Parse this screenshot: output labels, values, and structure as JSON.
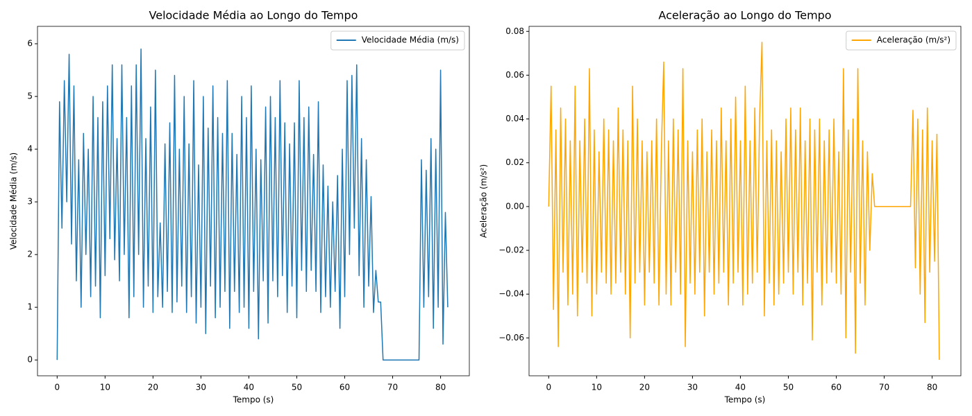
{
  "chart_data": [
    {
      "type": "line",
      "title": "Velocidade Média ao Longo do Tempo",
      "xlabel": "Tempo (s)",
      "ylabel": "Velocidade Média (m/s)",
      "x": [
        0,
        0.5,
        1,
        1.5,
        2,
        2.5,
        3,
        3.5,
        4,
        4.5,
        5,
        5.5,
        6,
        6.5,
        7,
        7.5,
        8,
        8.5,
        9,
        9.5,
        10,
        10.5,
        11,
        11.5,
        12,
        12.5,
        13,
        13.5,
        14,
        14.5,
        15,
        15.5,
        16,
        16.5,
        17,
        17.5,
        18,
        18.5,
        19,
        19.5,
        20,
        20.5,
        21,
        21.5,
        22,
        22.5,
        23,
        23.5,
        24,
        24.5,
        25,
        25.5,
        26,
        26.5,
        27,
        27.5,
        28,
        28.5,
        29,
        29.5,
        30,
        30.5,
        31,
        31.5,
        32,
        32.5,
        33,
        33.5,
        34,
        34.5,
        35,
        35.5,
        36,
        36.5,
        37,
        37.5,
        38,
        38.5,
        39,
        39.5,
        40,
        40.5,
        41,
        41.5,
        42,
        42.5,
        43,
        43.5,
        44,
        44.5,
        45,
        45.5,
        46,
        46.5,
        47,
        47.5,
        48,
        48.5,
        49,
        49.5,
        50,
        50.5,
        51,
        51.5,
        52,
        52.5,
        53,
        53.5,
        54,
        54.5,
        55,
        55.5,
        56,
        56.5,
        57,
        57.5,
        58,
        58.5,
        59,
        59.5,
        60,
        60.5,
        61,
        61.5,
        62,
        62.5,
        63,
        63.5,
        64,
        64.5,
        65,
        65.5,
        66,
        66.5,
        67,
        67.5,
        68,
        68.5,
        69,
        69.5,
        70,
        70.5,
        71,
        71.5,
        72,
        72.5,
        73,
        73.5,
        74,
        74.5,
        75,
        75.5,
        76,
        76.5,
        77,
        77.5,
        78,
        78.5,
        79,
        79.5,
        80,
        80.5,
        81,
        81.5
      ],
      "series": [
        {
          "name": "Velocidade Média (m/s)",
          "color": "#1f77b4",
          "values": [
            0,
            4.9,
            2.5,
            5.3,
            3.0,
            5.8,
            2.2,
            5.2,
            1.5,
            3.8,
            1.0,
            4.3,
            2.0,
            4.0,
            1.2,
            5.0,
            1.4,
            4.6,
            0.8,
            4.9,
            1.6,
            5.2,
            2.3,
            5.6,
            1.9,
            4.2,
            1.5,
            5.6,
            2.0,
            4.6,
            0.8,
            5.2,
            1.2,
            5.6,
            2.0,
            5.9,
            1.0,
            4.2,
            1.4,
            4.8,
            0.9,
            5.5,
            1.2,
            2.6,
            1.0,
            4.1,
            1.3,
            4.5,
            0.9,
            5.4,
            1.1,
            4.0,
            1.4,
            5.0,
            0.9,
            4.1,
            1.2,
            5.3,
            0.7,
            3.7,
            1.0,
            5.0,
            0.5,
            4.4,
            1.4,
            5.2,
            0.8,
            4.6,
            1.0,
            4.3,
            1.3,
            5.3,
            0.6,
            4.3,
            1.3,
            3.9,
            0.9,
            5.0,
            1.0,
            4.6,
            0.6,
            5.2,
            1.3,
            4.0,
            0.4,
            3.8,
            1.5,
            4.8,
            0.7,
            5.0,
            1.5,
            4.6,
            1.2,
            5.3,
            1.6,
            4.5,
            0.9,
            4.1,
            1.4,
            4.5,
            0.8,
            5.3,
            1.7,
            4.6,
            1.3,
            4.8,
            1.7,
            3.9,
            1.3,
            4.9,
            0.9,
            3.7,
            1.2,
            3.3,
            1.0,
            3.0,
            1.3,
            3.5,
            0.6,
            4.0,
            1.2,
            5.3,
            2.0,
            5.4,
            2.5,
            5.6,
            1.6,
            4.2,
            1.0,
            3.8,
            1.4,
            3.1,
            0.9,
            1.7,
            1.1,
            1.1,
            0,
            0,
            0,
            0,
            0,
            0,
            0,
            0,
            0,
            0,
            0,
            0,
            0,
            0,
            0,
            0,
            3.8,
            1.0,
            3.6,
            1.2,
            4.2,
            0.6,
            4.0,
            1.0,
            5.5,
            0.3,
            2.8,
            1.0
          ]
        }
      ],
      "xlim": [
        -4.1,
        86.0
      ],
      "ylim": [
        -0.3,
        6.33
      ],
      "xticks": [
        0,
        10,
        20,
        30,
        40,
        50,
        60,
        70,
        80
      ],
      "yticks": [
        0,
        1,
        2,
        3,
        4,
        5,
        6
      ],
      "legend": "upper right"
    },
    {
      "type": "line",
      "title": "Aceleração ao Longo do Tempo",
      "xlabel": "Tempo (s)",
      "ylabel": "Aceleração (m/s²)",
      "x": [
        0,
        0.5,
        1,
        1.5,
        2,
        2.5,
        3,
        3.5,
        4,
        4.5,
        5,
        5.5,
        6,
        6.5,
        7,
        7.5,
        8,
        8.5,
        9,
        9.5,
        10,
        10.5,
        11,
        11.5,
        12,
        12.5,
        13,
        13.5,
        14,
        14.5,
        15,
        15.5,
        16,
        16.5,
        17,
        17.5,
        18,
        18.5,
        19,
        19.5,
        20,
        20.5,
        21,
        21.5,
        22,
        22.5,
        23,
        23.5,
        24,
        24.5,
        25,
        25.5,
        26,
        26.5,
        27,
        27.5,
        28,
        28.5,
        29,
        29.5,
        30,
        30.5,
        31,
        31.5,
        32,
        32.5,
        33,
        33.5,
        34,
        34.5,
        35,
        35.5,
        36,
        36.5,
        37,
        37.5,
        38,
        38.5,
        39,
        39.5,
        40,
        40.5,
        41,
        41.5,
        42,
        42.5,
        43,
        43.5,
        44,
        44.5,
        45,
        45.5,
        46,
        46.5,
        47,
        47.5,
        48,
        48.5,
        49,
        49.5,
        50,
        50.5,
        51,
        51.5,
        52,
        52.5,
        53,
        53.5,
        54,
        54.5,
        55,
        55.5,
        56,
        56.5,
        57,
        57.5,
        58,
        58.5,
        59,
        59.5,
        60,
        60.5,
        61,
        61.5,
        62,
        62.5,
        63,
        63.5,
        64,
        64.5,
        65,
        65.5,
        66,
        66.5,
        67,
        67.5,
        68,
        68.5,
        69,
        69.5,
        70,
        70.5,
        71,
        71.5,
        72,
        72.5,
        73,
        73.5,
        74,
        74.5,
        75,
        75.5,
        76,
        76.5,
        77,
        77.5,
        78,
        78.5,
        79,
        79.5,
        80,
        80.5,
        81,
        81.5
      ],
      "series": [
        {
          "name": "Aceleração (m/s²)",
          "color": "#ffa500",
          "values": [
            0,
            0.055,
            -0.047,
            0.035,
            -0.064,
            0.045,
            -0.03,
            0.04,
            -0.045,
            0.03,
            -0.04,
            0.055,
            -0.05,
            0.03,
            -0.03,
            0.04,
            -0.035,
            0.063,
            -0.05,
            0.035,
            -0.04,
            0.025,
            -0.03,
            0.04,
            -0.035,
            0.035,
            -0.04,
            0.03,
            -0.035,
            0.045,
            -0.03,
            0.035,
            -0.04,
            0.03,
            -0.06,
            0.055,
            -0.035,
            0.04,
            -0.03,
            0.03,
            -0.045,
            0.025,
            -0.03,
            0.03,
            -0.035,
            0.04,
            -0.045,
            0.025,
            0.066,
            -0.04,
            0.03,
            -0.045,
            0.04,
            -0.03,
            0.035,
            -0.04,
            0.063,
            -0.064,
            0.03,
            -0.035,
            0.025,
            -0.04,
            0.035,
            -0.03,
            0.04,
            -0.05,
            0.025,
            -0.03,
            0.035,
            -0.04,
            0.03,
            -0.035,
            0.045,
            -0.03,
            0.03,
            -0.045,
            0.04,
            -0.035,
            0.05,
            -0.03,
            0.03,
            -0.045,
            0.055,
            -0.04,
            0.03,
            -0.035,
            0.045,
            -0.03,
            0.04,
            0.075,
            -0.05,
            0.03,
            -0.035,
            0.035,
            -0.045,
            0.03,
            -0.04,
            0.025,
            -0.035,
            0.04,
            -0.03,
            0.045,
            -0.04,
            0.035,
            -0.03,
            0.045,
            -0.045,
            0.03,
            -0.035,
            0.04,
            -0.061,
            0.035,
            -0.03,
            0.04,
            -0.045,
            0.03,
            -0.035,
            0.035,
            -0.03,
            0.04,
            -0.035,
            0.025,
            -0.04,
            0.063,
            -0.06,
            0.035,
            -0.03,
            0.04,
            -0.067,
            0.063,
            -0.035,
            0.03,
            -0.045,
            0.025,
            -0.02,
            0.015,
            0,
            0,
            0,
            0,
            0,
            0,
            0,
            0,
            0,
            0,
            0,
            0,
            0,
            0,
            0,
            0,
            0.044,
            -0.028,
            0.04,
            -0.04,
            0.035,
            -0.053,
            0.045,
            -0.03,
            0.03,
            -0.025,
            0.033,
            -0.07
          ]
        }
      ],
      "xlim": [
        -4.1,
        86.0
      ],
      "ylim": [
        -0.0773,
        0.0823
      ],
      "xticks": [
        0,
        10,
        20,
        30,
        40,
        50,
        60,
        70,
        80
      ],
      "yticks": [
        {
          "value": -0.06,
          "label": "−0.06"
        },
        {
          "value": -0.04,
          "label": "−0.04"
        },
        {
          "value": -0.02,
          "label": "−0.02"
        },
        {
          "value": 0,
          "label": "0.00"
        },
        {
          "value": 0.02,
          "label": "0.02"
        },
        {
          "value": 0.04,
          "label": "0.04"
        },
        {
          "value": 0.06,
          "label": "0.06"
        },
        {
          "value": 0.08,
          "label": "0.08"
        }
      ],
      "legend": "upper right"
    }
  ]
}
